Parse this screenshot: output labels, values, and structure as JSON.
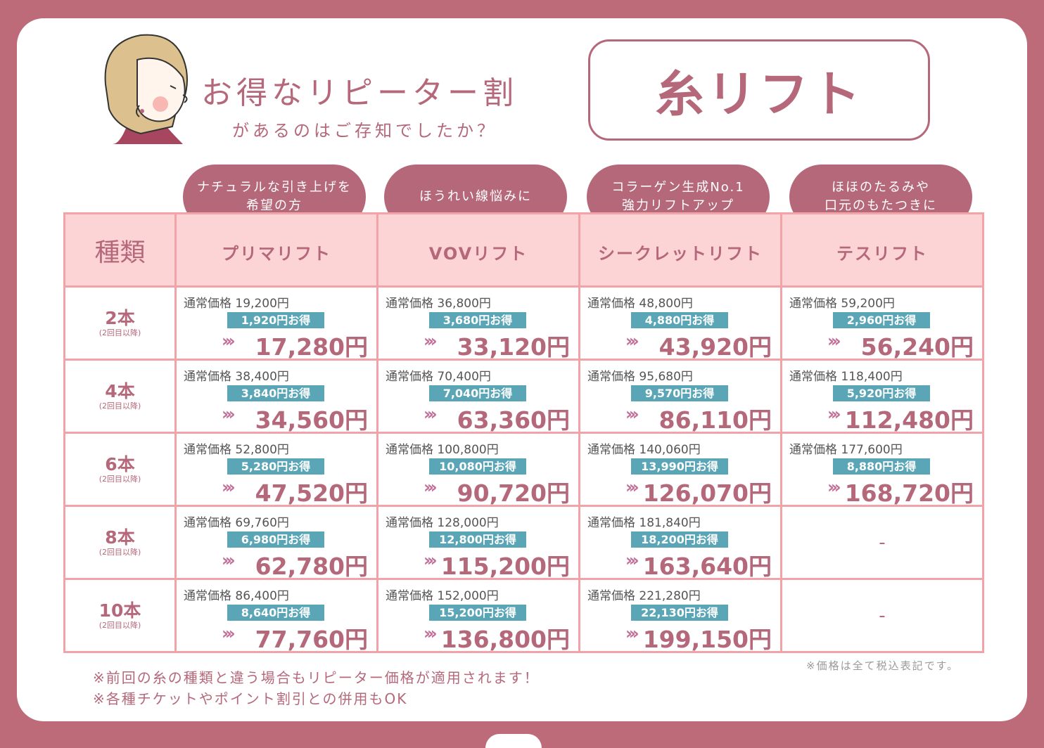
{
  "header": {
    "title": "お得なリピーター割",
    "subtitle": "があるのはご存知でしたか？",
    "product": "糸リフト"
  },
  "table": {
    "type_label": "種類",
    "columns": [
      {
        "name": "プリマリフト",
        "bubble": [
          "ナチュラルな引き上げを",
          "希望の方"
        ]
      },
      {
        "name": "VOVリフト",
        "bubble": [
          "ほうれい線悩みに"
        ]
      },
      {
        "name": "シークレットリフト",
        "bubble": [
          "コラーゲン生成No.1",
          "強力リフトアップ"
        ]
      },
      {
        "name": "テスリフト",
        "bubble": [
          "ほほのたるみや",
          "口元のもたつきに"
        ]
      }
    ],
    "arrow_glyph": "›››",
    "rows": [
      {
        "qty": "2本",
        "note": "(2回目以降)",
        "cells": [
          {
            "regular": "通常価格 19,200円",
            "save": "1,920円お得",
            "price": "17,280円"
          },
          {
            "regular": "通常価格 36,800円",
            "save": "3,680円お得",
            "price": "33,120円"
          },
          {
            "regular": "通常価格 48,800円",
            "save": "4,880円お得",
            "price": "43,920円"
          },
          {
            "regular": "通常価格 59,200円",
            "save": "2,960円お得",
            "price": "56,240円"
          }
        ]
      },
      {
        "qty": "4本",
        "note": "(2回目以降)",
        "cells": [
          {
            "regular": "通常価格 38,400円",
            "save": "3,840円お得",
            "price": "34,560円"
          },
          {
            "regular": "通常価格 70,400円",
            "save": "7,040円お得",
            "price": "63,360円"
          },
          {
            "regular": "通常価格 95,680円",
            "save": "9,570円お得",
            "price": "86,110円"
          },
          {
            "regular": "通常価格 118,400円",
            "save": "5,920円お得",
            "price": "112,480円"
          }
        ]
      },
      {
        "qty": "6本",
        "note": "(2回目以降)",
        "cells": [
          {
            "regular": "通常価格 52,800円",
            "save": "5,280円お得",
            "price": "47,520円"
          },
          {
            "regular": "通常価格 100,800円",
            "save": "10,080円お得",
            "price": "90,720円"
          },
          {
            "regular": "通常価格 140,060円",
            "save": "13,990円お得",
            "price": "126,070円"
          },
          {
            "regular": "通常価格 177,600円",
            "save": "8,880円お得",
            "price": "168,720円"
          }
        ]
      },
      {
        "qty": "8本",
        "note": "(2回目以降)",
        "cells": [
          {
            "regular": "通常価格 69,760円",
            "save": "6,980円お得",
            "price": "62,780円"
          },
          {
            "regular": "通常価格 128,000円",
            "save": "12,800円お得",
            "price": "115,200円"
          },
          {
            "regular": "通常価格 181,840円",
            "save": "18,200円お得",
            "price": "163,640円"
          },
          {
            "dash": "-"
          }
        ]
      },
      {
        "qty": "10本",
        "note": "(2回目以降)",
        "cells": [
          {
            "regular": "通常価格 86,400円",
            "save": "8,640円お得",
            "price": "77,760円"
          },
          {
            "regular": "通常価格 152,000円",
            "save": "15,200円お得",
            "price": "136,800円"
          },
          {
            "regular": "通常価格 221,280円",
            "save": "22,130円お得",
            "price": "199,150円"
          },
          {
            "dash": "-"
          }
        ]
      }
    ]
  },
  "footer": {
    "note1": "※前回の糸の種類と違う場合もリピーター価格が適用されます！",
    "note2": "※各種チケットやポイント割引との併用もOK",
    "tax_note": "※価格は全て税込表記です。"
  },
  "colors": {
    "background": "#bd6a79",
    "accent": "#b5687a",
    "header_fill": "#fcd4d6",
    "border": "#f1a3a8",
    "save_badge": "#5aa6b6"
  }
}
